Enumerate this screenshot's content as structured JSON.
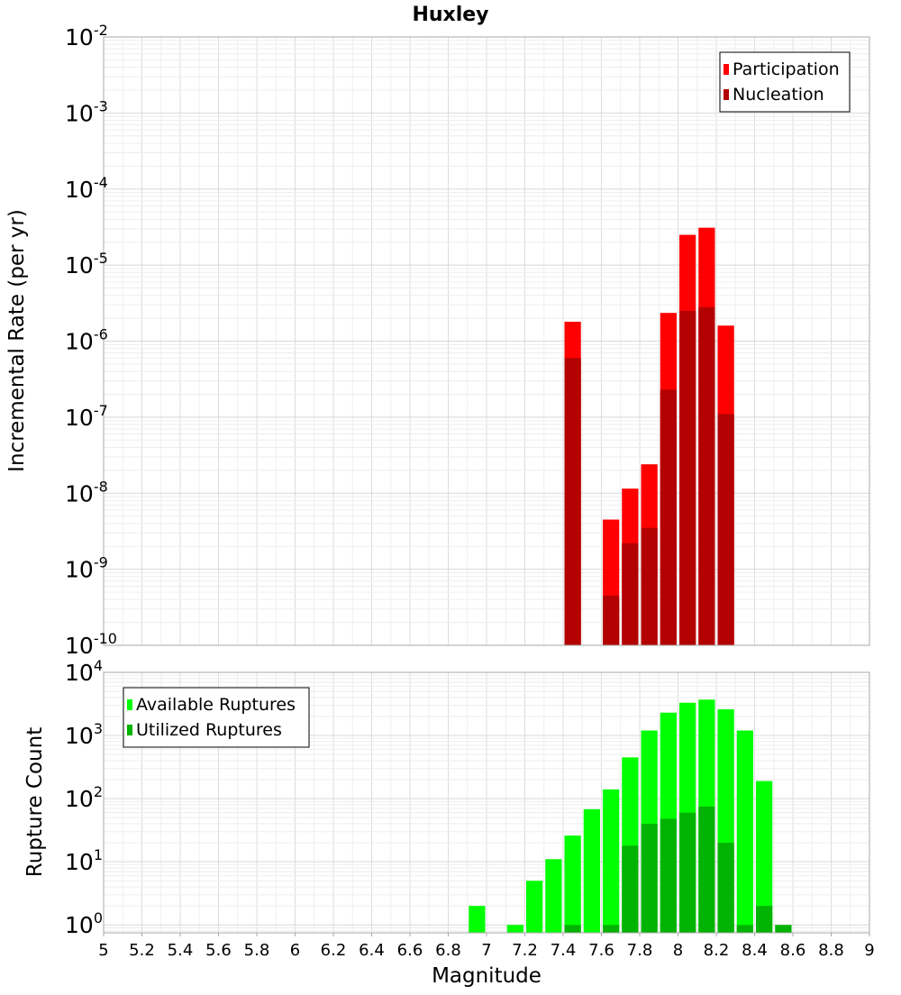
{
  "chart_data": [
    {
      "type": "bar",
      "title": "Huxley",
      "ylabel": "Incremental Rate (per yr)",
      "yscale": "log",
      "ylim": [
        1e-10,
        0.01
      ],
      "xlim": [
        5,
        9
      ],
      "bin_width": 0.1,
      "grid": true,
      "legend_position": "top-right",
      "y_tick_exponents": [
        "-2",
        "-3",
        "-4",
        "-5",
        "-6",
        "-7",
        "-8",
        "-9",
        "-10"
      ],
      "series": [
        {
          "name": "Participation",
          "color": "#ff0000",
          "points": [
            {
              "x": 7.45,
              "y": 1.8e-06
            },
            {
              "x": 7.65,
              "y": 4.5e-09
            },
            {
              "x": 7.75,
              "y": 1.15e-08
            },
            {
              "x": 7.85,
              "y": 2.4e-08
            },
            {
              "x": 7.95,
              "y": 2.35e-06
            },
            {
              "x": 8.05,
              "y": 2.5e-05
            },
            {
              "x": 8.15,
              "y": 3.1e-05
            },
            {
              "x": 8.25,
              "y": 1.6e-06
            }
          ]
        },
        {
          "name": "Nucleation",
          "color": "#b30000",
          "points": [
            {
              "x": 7.45,
              "y": 6e-07
            },
            {
              "x": 7.65,
              "y": 4.5e-10
            },
            {
              "x": 7.75,
              "y": 2.2e-09
            },
            {
              "x": 7.85,
              "y": 3.5e-09
            },
            {
              "x": 7.95,
              "y": 2.3e-07
            },
            {
              "x": 8.05,
              "y": 2.5e-06
            },
            {
              "x": 8.15,
              "y": 2.8e-06
            },
            {
              "x": 8.25,
              "y": 1.1e-07
            }
          ]
        }
      ]
    },
    {
      "type": "bar",
      "title": "",
      "xlabel": "Magnitude",
      "ylabel": "Rupture Count",
      "yscale": "log",
      "ylim": [
        0.75,
        10000
      ],
      "xlim": [
        5,
        9
      ],
      "bin_width": 0.1,
      "grid": true,
      "legend_position": "top-left",
      "x_ticks": [
        "5",
        "5.2",
        "5.4",
        "5.6",
        "5.8",
        "6",
        "6.2",
        "6.4",
        "6.6",
        "6.8",
        "7",
        "7.2",
        "7.4",
        "7.6",
        "7.8",
        "8",
        "8.2",
        "8.4",
        "8.6",
        "8.8",
        "9"
      ],
      "y_tick_exponents": [
        "4",
        "3",
        "2",
        "1",
        "0"
      ],
      "series": [
        {
          "name": "Available Ruptures",
          "color": "#00ff00",
          "points": [
            {
              "x": 6.95,
              "y": 2
            },
            {
              "x": 7.15,
              "y": 1
            },
            {
              "x": 7.25,
              "y": 5
            },
            {
              "x": 7.35,
              "y": 11
            },
            {
              "x": 7.45,
              "y": 26
            },
            {
              "x": 7.55,
              "y": 68
            },
            {
              "x": 7.65,
              "y": 140
            },
            {
              "x": 7.75,
              "y": 450
            },
            {
              "x": 7.85,
              "y": 1200
            },
            {
              "x": 7.95,
              "y": 2300
            },
            {
              "x": 8.05,
              "y": 3300
            },
            {
              "x": 8.15,
              "y": 3700
            },
            {
              "x": 8.25,
              "y": 2600
            },
            {
              "x": 8.35,
              "y": 1200
            },
            {
              "x": 8.45,
              "y": 190
            }
          ]
        },
        {
          "name": "Utilized Ruptures",
          "color": "#00b300",
          "points": [
            {
              "x": 7.45,
              "y": 1
            },
            {
              "x": 7.65,
              "y": 1
            },
            {
              "x": 7.75,
              "y": 18
            },
            {
              "x": 7.85,
              "y": 40
            },
            {
              "x": 7.95,
              "y": 48
            },
            {
              "x": 8.05,
              "y": 60
            },
            {
              "x": 8.15,
              "y": 75
            },
            {
              "x": 8.25,
              "y": 20
            },
            {
              "x": 8.35,
              "y": 1
            },
            {
              "x": 8.45,
              "y": 2
            },
            {
              "x": 8.55,
              "y": 1
            }
          ]
        }
      ]
    }
  ]
}
